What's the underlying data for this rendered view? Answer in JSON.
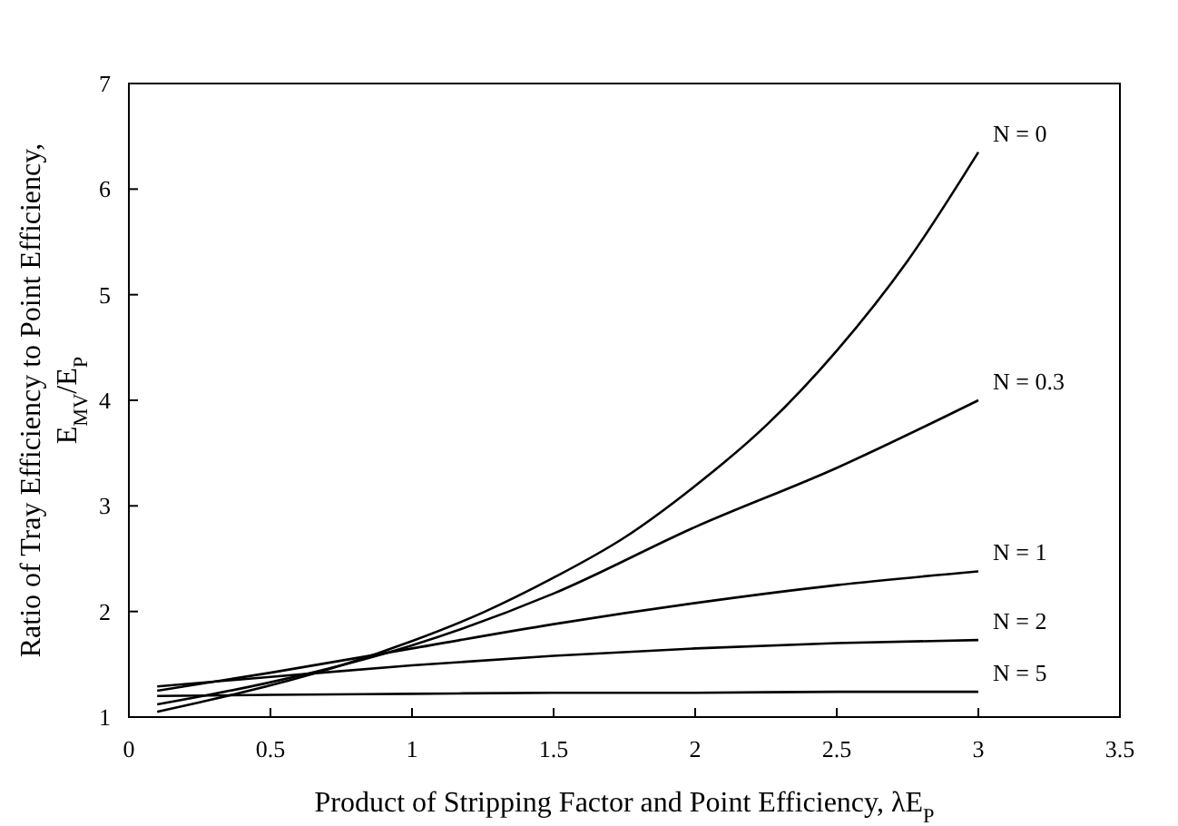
{
  "chart_data": {
    "type": "line",
    "xlabel": "Product of Stripping Factor and Point Efficiency, λE$_{P}$",
    "ylabel": "Ratio of Tray Efficiency to Point Efficiency,\nE$_{MV}$/E$_{P}$",
    "x": [
      0.1,
      0.5,
      1,
      1.5,
      2,
      2.5,
      3
    ],
    "xlim": [
      0,
      3.5
    ],
    "xticks": [
      0,
      0.5,
      1,
      1.5,
      2,
      2.5,
      3,
      3.5
    ],
    "ylim": [
      1,
      7
    ],
    "yticks": [
      1,
      2,
      3,
      4,
      5,
      6,
      7
    ],
    "grid": false,
    "marker": "none",
    "line_style": "solid",
    "series": [
      {
        "name": "N = 0",
        "color": "#000000",
        "x": [
          0.1,
          0.25,
          0.5,
          0.75,
          1,
          1.25,
          1.5,
          1.75,
          2,
          2.25,
          2.5,
          2.75,
          3
        ],
        "values": [
          1.05,
          1.14,
          1.3,
          1.49,
          1.72,
          1.99,
          2.32,
          2.7,
          3.19,
          3.76,
          4.47,
          5.32,
          6.35
        ]
      },
      {
        "name": "N = 0.3",
        "color": "#000000",
        "values": [
          1.12,
          1.33,
          1.68,
          2.17,
          2.8,
          3.36,
          4.0
        ]
      },
      {
        "name": "N = 1",
        "color": "#000000",
        "values": [
          1.25,
          1.42,
          1.65,
          1.88,
          2.08,
          2.25,
          2.38
        ]
      },
      {
        "name": "N = 2",
        "color": "#000000",
        "values": [
          1.29,
          1.38,
          1.49,
          1.58,
          1.65,
          1.7,
          1.73
        ]
      },
      {
        "name": "N = 5",
        "color": "#000000",
        "values": [
          1.2,
          1.21,
          1.22,
          1.23,
          1.23,
          1.24,
          1.24
        ]
      }
    ]
  }
}
